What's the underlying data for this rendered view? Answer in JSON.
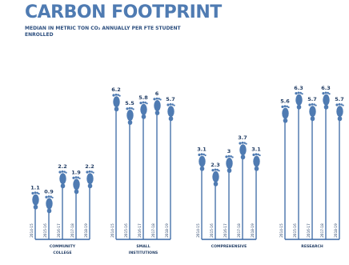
{
  "title": "CARBON FOOTPRINT",
  "subtitle": "MEDIAN IN METRIC TON CO₂ ANNUALLY PER FTE STUDENT ENROLLED",
  "colors": {
    "title": "#4f7bb2",
    "bar": "#3a68a5",
    "label": "#243f66",
    "icon": "#4f7bb2"
  },
  "icon": "footprint-icon",
  "chart_data": {
    "type": "bar",
    "title": "CARBON FOOTPRINT",
    "ylabel": "Median in metric ton CO₂ annually per FTE student enrolled",
    "groups": [
      {
        "name": "COMMUNITY COLLEGE",
        "categories": [
          "2014-15",
          "2015-16",
          "2016-17",
          "2017-18",
          "2018-19"
        ],
        "values": [
          1.1,
          0.9,
          2.2,
          1.9,
          2.2
        ]
      },
      {
        "name": "SMALL INSTITUTIONS",
        "categories": [
          "2014-15",
          "2015-16",
          "2016-17",
          "2017-18",
          "2018-19"
        ],
        "values": [
          6.2,
          5.5,
          5.8,
          6.0,
          5.7
        ]
      },
      {
        "name": "COMPREHENSIVE",
        "categories": [
          "2014-15",
          "2015-16",
          "2016-17",
          "2017-18",
          "2018-19"
        ],
        "values": [
          3.1,
          2.3,
          3.0,
          3.7,
          3.1
        ]
      },
      {
        "name": "RESEARCH",
        "categories": [
          "2014-15",
          "2015-16",
          "2016-17",
          "2017-18",
          "2018-19"
        ],
        "values": [
          5.6,
          6.3,
          5.7,
          6.3,
          5.7
        ]
      }
    ]
  }
}
